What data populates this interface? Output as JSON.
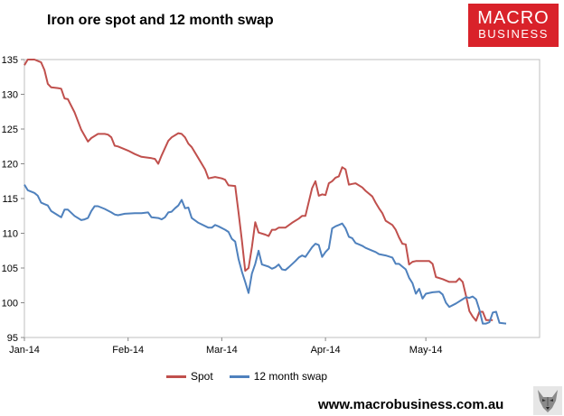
{
  "header": {
    "title": "Iron ore spot and 12 month swap"
  },
  "logo": {
    "line1": "MACRO",
    "line2": "BUSINESS",
    "color": "#d9222a"
  },
  "footer": {
    "website": "www.macrobusiness.com.au",
    "icon": "wolf-icon"
  },
  "chart_data": {
    "type": "line",
    "title": "Iron ore spot and 12 month swap",
    "xlabel": "",
    "ylabel": "",
    "ylim": [
      95,
      135
    ],
    "xlim": [
      0,
      154
    ],
    "yticks": [
      95,
      100,
      105,
      110,
      115,
      120,
      125,
      130,
      135
    ],
    "xticks": [
      {
        "label": "Jan-14",
        "x": 0
      },
      {
        "label": "Feb-14",
        "x": 31
      },
      {
        "label": "Mar-14",
        "x": 59
      },
      {
        "label": "Apr-14",
        "x": 90
      },
      {
        "label": "May-14",
        "x": 120
      }
    ],
    "grid": false,
    "legend": "bottom",
    "series": [
      {
        "name": "Spot",
        "color": "#c0504d",
        "points": [
          [
            0,
            134.2
          ],
          [
            1,
            135
          ],
          [
            3,
            135
          ],
          [
            5,
            134.6
          ],
          [
            6,
            133.5
          ],
          [
            7,
            131.5
          ],
          [
            8,
            131
          ],
          [
            10,
            130.9
          ],
          [
            11,
            130.8
          ],
          [
            12,
            129.4
          ],
          [
            13,
            129.3
          ],
          [
            15,
            127.4
          ],
          [
            17,
            124.9
          ],
          [
            19,
            123.2
          ],
          [
            20,
            123.7
          ],
          [
            22,
            124.3
          ],
          [
            24,
            124.3
          ],
          [
            25,
            124.2
          ],
          [
            26,
            123.8
          ],
          [
            27,
            122.6
          ],
          [
            28,
            122.5
          ],
          [
            31,
            121.9
          ],
          [
            33,
            121.4
          ],
          [
            35,
            121
          ],
          [
            38,
            120.8
          ],
          [
            39,
            120.7
          ],
          [
            40,
            120
          ],
          [
            41,
            121.2
          ],
          [
            43,
            123.3
          ],
          [
            44,
            123.8
          ],
          [
            46,
            124.4
          ],
          [
            47,
            124.3
          ],
          [
            48,
            123.8
          ],
          [
            49,
            122.9
          ],
          [
            50,
            122.4
          ],
          [
            52,
            120.8
          ],
          [
            54,
            119.2
          ],
          [
            55,
            117.9
          ],
          [
            57,
            118.1
          ],
          [
            59,
            117.9
          ],
          [
            60,
            117.7
          ],
          [
            61,
            116.9
          ],
          [
            63,
            116.8
          ],
          [
            64,
            113
          ],
          [
            65,
            109
          ],
          [
            66,
            104.6
          ],
          [
            67,
            105
          ],
          [
            68,
            108
          ],
          [
            69,
            111.6
          ],
          [
            70,
            110.1
          ],
          [
            72,
            109.8
          ],
          [
            73,
            109.6
          ],
          [
            74,
            110.5
          ],
          [
            75,
            110.5
          ],
          [
            76,
            110.8
          ],
          [
            78,
            110.8
          ],
          [
            80,
            111.5
          ],
          [
            82,
            112.1
          ],
          [
            83,
            112.5
          ],
          [
            84,
            112.5
          ],
          [
            85,
            114.5
          ],
          [
            86,
            116.5
          ],
          [
            87,
            117.5
          ],
          [
            88,
            115.4
          ],
          [
            89,
            115.6
          ],
          [
            90,
            115.5
          ],
          [
            91,
            117.2
          ],
          [
            92,
            117.5
          ],
          [
            93,
            118
          ],
          [
            94,
            118.2
          ],
          [
            95,
            119.5
          ],
          [
            96,
            119.2
          ],
          [
            97,
            117
          ],
          [
            98,
            117.1
          ],
          [
            99,
            117.2
          ],
          [
            101,
            116.6
          ],
          [
            102,
            116.1
          ],
          [
            104,
            115.3
          ],
          [
            105,
            114.4
          ],
          [
            106,
            113.6
          ],
          [
            107,
            112.9
          ],
          [
            108,
            111.8
          ],
          [
            110,
            111.2
          ],
          [
            111,
            110.5
          ],
          [
            112,
            109.4
          ],
          [
            113,
            108.5
          ],
          [
            114,
            108.4
          ],
          [
            115,
            105.5
          ],
          [
            116,
            105.9
          ],
          [
            117,
            106
          ],
          [
            118,
            106
          ],
          [
            119,
            106
          ],
          [
            121,
            106
          ],
          [
            122,
            105.6
          ],
          [
            123,
            103.7
          ],
          [
            125,
            103.4
          ],
          [
            127,
            103
          ],
          [
            128,
            103
          ],
          [
            129,
            103
          ],
          [
            130,
            103.5
          ],
          [
            131,
            103
          ],
          [
            132,
            101
          ],
          [
            133,
            98.8
          ],
          [
            134,
            98
          ],
          [
            135,
            97.4
          ],
          [
            136,
            98.7
          ],
          [
            137,
            98.7
          ],
          [
            138,
            97.5
          ],
          [
            139,
            97.5
          ],
          [
            140,
            97.5
          ]
        ]
      },
      {
        "name": "12 month swap",
        "color": "#4f81bd",
        "points": [
          [
            0,
            117
          ],
          [
            1,
            116.2
          ],
          [
            3,
            115.8
          ],
          [
            4,
            115.4
          ],
          [
            5,
            114.4
          ],
          [
            6,
            114.2
          ],
          [
            7,
            114
          ],
          [
            8,
            113.2
          ],
          [
            10,
            112.6
          ],
          [
            11,
            112.3
          ],
          [
            12,
            113.4
          ],
          [
            13,
            113.4
          ],
          [
            15,
            112.5
          ],
          [
            17,
            111.9
          ],
          [
            18,
            112
          ],
          [
            19,
            112.2
          ],
          [
            20,
            113.2
          ],
          [
            21,
            113.9
          ],
          [
            22,
            113.9
          ],
          [
            24,
            113.5
          ],
          [
            26,
            113
          ],
          [
            27,
            112.7
          ],
          [
            28,
            112.6
          ],
          [
            30,
            112.8
          ],
          [
            33,
            112.9
          ],
          [
            35,
            112.9
          ],
          [
            37,
            113
          ],
          [
            38,
            112.3
          ],
          [
            40,
            112.2
          ],
          [
            41,
            112
          ],
          [
            42,
            112.3
          ],
          [
            43,
            113
          ],
          [
            44,
            113.1
          ],
          [
            45,
            113.6
          ],
          [
            46,
            114
          ],
          [
            47,
            114.8
          ],
          [
            48,
            113.6
          ],
          [
            49,
            113.7
          ],
          [
            50,
            112.2
          ],
          [
            52,
            111.5
          ],
          [
            55,
            110.8
          ],
          [
            56,
            110.8
          ],
          [
            57,
            111.2
          ],
          [
            58,
            111
          ],
          [
            60,
            110.5
          ],
          [
            61,
            110.2
          ],
          [
            62,
            109.2
          ],
          [
            63,
            108.8
          ],
          [
            64,
            106.3
          ],
          [
            65,
            104.5
          ],
          [
            66,
            103
          ],
          [
            67,
            101.4
          ],
          [
            68,
            104.2
          ],
          [
            69,
            105.6
          ],
          [
            70,
            107.5
          ],
          [
            71,
            105.5
          ],
          [
            73,
            105.2
          ],
          [
            74,
            104.9
          ],
          [
            75,
            105.1
          ],
          [
            76,
            105.5
          ],
          [
            77,
            104.8
          ],
          [
            78,
            104.7
          ],
          [
            79,
            105.1
          ],
          [
            81,
            106
          ],
          [
            82,
            106.5
          ],
          [
            83,
            106.8
          ],
          [
            84,
            106.6
          ],
          [
            85,
            107.3
          ],
          [
            86,
            108
          ],
          [
            87,
            108.5
          ],
          [
            88,
            108.3
          ],
          [
            89,
            106.6
          ],
          [
            90,
            107.3
          ],
          [
            91,
            107.8
          ],
          [
            92,
            110.7
          ],
          [
            93,
            111
          ],
          [
            94,
            111.2
          ],
          [
            95,
            111.4
          ],
          [
            96,
            110.7
          ],
          [
            97,
            109.5
          ],
          [
            98,
            109.3
          ],
          [
            99,
            108.6
          ],
          [
            100,
            108.4
          ],
          [
            101,
            108.2
          ],
          [
            102,
            107.9
          ],
          [
            104,
            107.5
          ],
          [
            105,
            107.3
          ],
          [
            106,
            107
          ],
          [
            108,
            106.8
          ],
          [
            110,
            106.5
          ],
          [
            111,
            105.6
          ],
          [
            112,
            105.6
          ],
          [
            113,
            105.2
          ],
          [
            114,
            104.8
          ],
          [
            115,
            103.6
          ],
          [
            116,
            102.8
          ],
          [
            117,
            101.3
          ],
          [
            118,
            102
          ],
          [
            119,
            100.6
          ],
          [
            120,
            101.3
          ],
          [
            122,
            101.5
          ],
          [
            124,
            101.6
          ],
          [
            125,
            101.2
          ],
          [
            126,
            100
          ],
          [
            127,
            99.4
          ],
          [
            129,
            99.9
          ],
          [
            131,
            100.5
          ],
          [
            132,
            100.8
          ],
          [
            133,
            100.7
          ],
          [
            134,
            100.9
          ],
          [
            135,
            100.5
          ],
          [
            136,
            99
          ],
          [
            137,
            97
          ],
          [
            138,
            97
          ],
          [
            139,
            97.2
          ],
          [
            140,
            98.6
          ],
          [
            141,
            98.7
          ],
          [
            142,
            97.1
          ],
          [
            144,
            97
          ]
        ]
      }
    ]
  }
}
